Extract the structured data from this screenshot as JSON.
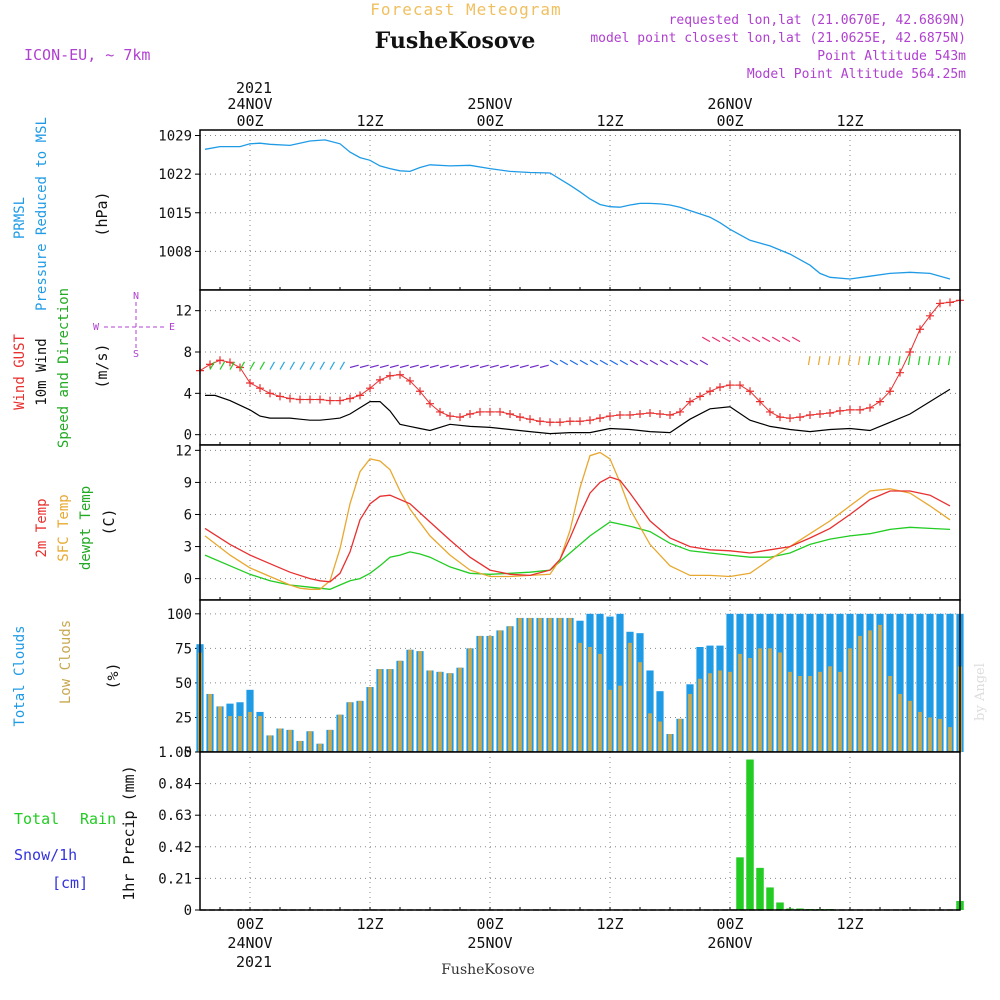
{
  "header": {
    "title": "Forecast Meteogram",
    "location": "FusheKosove",
    "model": "ICON-EU, ~ 7km",
    "requested": "requested lon,lat (21.0670E, 42.6869N)",
    "closest": "model point closest lon,lat (21.0625E, 42.6875N)",
    "point_alt": "Point Altitude 543m",
    "model_alt": "Model Point Altitude 564.25m",
    "footer": "FusheKosove",
    "credit": "by Angel"
  },
  "time_axis": {
    "top_ticks": [
      "00Z",
      "12Z",
      "00Z",
      "12Z",
      "00Z",
      "12Z"
    ],
    "top_dates": [
      "24NOV",
      "",
      "25NOV",
      "",
      "26NOV",
      ""
    ],
    "top_year": "2021",
    "bottom_ticks": [
      "00Z",
      "12Z",
      "00Z",
      "12Z",
      "00Z",
      "12Z"
    ],
    "bottom_dates": [
      "24NOV",
      "",
      "25NOV",
      "",
      "26NOV",
      ""
    ],
    "bottom_year": "2021",
    "hour_range": [
      -5,
      71
    ]
  },
  "colors": {
    "pressure": "#1f9be6",
    "gust": "#e83030",
    "wind": "#000000",
    "t2m": "#e83030",
    "sfc": "#e8a830",
    "dewpt": "#22cc22",
    "total_clouds": "#1f9be6",
    "low_clouds": "#c8a850",
    "rain": "#22cc22",
    "snow": "#3333dd",
    "title_gold": "#f0c060",
    "purple": "#b040d0"
  },
  "chart_data": [
    {
      "type": "line",
      "panel": "pressure",
      "label_main": "PRMSL",
      "label_sub": "Pressure Reduced to MSL",
      "unit": "(hPa)",
      "ylim": [
        1001,
        1030
      ],
      "yticks": [
        1008,
        1015,
        1022,
        1029
      ],
      "x": [
        -4.5,
        -3,
        -1,
        0,
        1,
        2,
        4,
        6,
        7.5,
        9,
        10,
        11,
        12,
        13,
        14,
        15,
        16,
        17,
        18,
        20,
        22,
        24,
        26,
        28,
        30,
        32,
        33,
        34,
        35,
        36,
        37,
        38,
        39,
        40,
        41,
        42,
        43,
        44,
        45,
        46,
        47,
        48,
        50,
        52,
        54,
        56,
        57,
        58,
        60,
        62,
        64,
        66,
        68,
        70
      ],
      "values": [
        1026.5,
        1027,
        1027,
        1027.5,
        1027.6,
        1027.4,
        1027.2,
        1028,
        1028.2,
        1027.5,
        1026,
        1025,
        1024.5,
        1023.5,
        1023,
        1022.6,
        1022.5,
        1023.2,
        1023.7,
        1023.5,
        1023.6,
        1023,
        1022.5,
        1022.3,
        1022.2,
        1020,
        1018.8,
        1017.5,
        1016.5,
        1016.1,
        1016,
        1016.4,
        1016.7,
        1016.7,
        1016.6,
        1016.4,
        1016,
        1015.4,
        1014.8,
        1014.2,
        1013.2,
        1012,
        1010,
        1009,
        1007.5,
        1005.5,
        1004,
        1003.3,
        1003,
        1003.5,
        1004,
        1004.2,
        1004,
        1003
      ]
    },
    {
      "type": "line",
      "panel": "wind",
      "label_gust": "Wind GUST",
      "label_wind": "10m Wind",
      "label_dir": "Speed and Direction",
      "unit": "(m/s)",
      "compass": {
        "n": "N",
        "s": "S",
        "w": "W",
        "e": "E"
      },
      "ylim": [
        -1,
        14
      ],
      "yticks": [
        0,
        4,
        8,
        12
      ],
      "series": [
        {
          "name": "Wind GUST",
          "x": [
            -5,
            -4,
            -3,
            -2,
            -1,
            0,
            1,
            2,
            3,
            4,
            5,
            6,
            7,
            8,
            9,
            10,
            11,
            12,
            13,
            14,
            15,
            16,
            17,
            18,
            19,
            20,
            21,
            22,
            23,
            24,
            25,
            26,
            27,
            28,
            29,
            30,
            31,
            32,
            33,
            34,
            35,
            36,
            37,
            38,
            39,
            40,
            41,
            42,
            43,
            44,
            45,
            46,
            47,
            48,
            49,
            50,
            51,
            52,
            53,
            54,
            55,
            56,
            57,
            58,
            59,
            60,
            61,
            62,
            63,
            64,
            65,
            66,
            67,
            68,
            69,
            70,
            71
          ],
          "values": [
            6.2,
            6.8,
            7.2,
            7,
            6.5,
            5,
            4.5,
            4,
            3.7,
            3.5,
            3.4,
            3.4,
            3.4,
            3.3,
            3.3,
            3.5,
            3.8,
            4.5,
            5.3,
            5.7,
            5.8,
            5.2,
            4.2,
            3,
            2.2,
            1.8,
            1.7,
            2,
            2.2,
            2.2,
            2.2,
            2,
            1.7,
            1.5,
            1.3,
            1.2,
            1.2,
            1.3,
            1.3,
            1.4,
            1.6,
            1.8,
            1.9,
            1.9,
            2,
            2.1,
            2,
            1.9,
            2.2,
            3.2,
            3.7,
            4.2,
            4.6,
            4.8,
            4.8,
            4.2,
            3.2,
            2.2,
            1.7,
            1.6,
            1.7,
            1.9,
            2,
            2.1,
            2.3,
            2.4,
            2.4,
            2.6,
            3.2,
            4.2,
            6,
            8,
            10.2,
            11.5,
            12.7,
            12.8,
            13
          ]
        },
        {
          "name": "10m Wind",
          "x": [
            -4.5,
            -3.5,
            -2,
            0,
            1,
            2,
            3,
            4,
            5,
            6,
            7,
            8,
            9,
            10,
            11,
            12,
            13,
            14,
            15,
            16,
            17,
            18,
            20,
            22,
            24,
            26,
            28,
            30,
            32,
            34,
            36,
            38,
            40,
            42,
            44,
            46,
            48,
            50,
            52,
            54,
            56,
            58,
            60,
            62,
            64,
            66,
            68,
            70
          ],
          "values": [
            3.8,
            3.8,
            3.3,
            2.4,
            1.8,
            1.6,
            1.6,
            1.6,
            1.5,
            1.4,
            1.4,
            1.5,
            1.6,
            2,
            2.6,
            3.2,
            3.2,
            2.3,
            1,
            0.8,
            0.6,
            0.4,
            1,
            0.8,
            0.7,
            0.5,
            0.3,
            0.1,
            0.2,
            0.2,
            0.6,
            0.5,
            0.3,
            0.2,
            1.5,
            2.5,
            2.7,
            1.4,
            0.8,
            0.5,
            0.3,
            0.5,
            0.6,
            0.4,
            1.2,
            2,
            3.2,
            4.4
          ]
        }
      ]
    },
    {
      "type": "line",
      "panel": "temperature",
      "label_t2m": "2m Temp",
      "label_sfc": "SFC Temp",
      "label_dew": "dewpt Temp",
      "unit": "(C)",
      "ylim": [
        -2,
        12.5
      ],
      "yticks": [
        0,
        3,
        6,
        9,
        12
      ],
      "series": [
        {
          "name": "2m Temp",
          "x": [
            -4.5,
            -2,
            0,
            2,
            4,
            6,
            7,
            8,
            9,
            10,
            11,
            12,
            13,
            14,
            16,
            18,
            20,
            22,
            24,
            26,
            28,
            30,
            31,
            32,
            33,
            34,
            35,
            36,
            37,
            38,
            40,
            42,
            44,
            46,
            48,
            50,
            52,
            54,
            56,
            58,
            60,
            62,
            64,
            66,
            68,
            70
          ],
          "values": [
            4.7,
            3.2,
            2.2,
            1.4,
            0.6,
            0,
            -0.2,
            -0.3,
            0.5,
            2.5,
            5.5,
            7,
            7.7,
            7.8,
            7,
            5.3,
            3.6,
            2,
            0.8,
            0.4,
            0.3,
            0.8,
            1.8,
            3.8,
            6,
            8,
            9,
            9.5,
            9.2,
            8,
            5.4,
            3.8,
            3,
            2.7,
            2.6,
            2.4,
            2.7,
            3,
            3.8,
            4.7,
            6,
            7.4,
            8.2,
            8.2,
            7.8,
            6.8
          ]
        },
        {
          "name": "SFC Temp",
          "x": [
            -4.5,
            -2,
            0,
            2,
            4,
            5,
            6,
            7,
            8,
            9,
            10,
            11,
            12,
            13,
            14,
            15,
            16,
            18,
            20,
            22,
            24,
            26,
            28,
            30,
            31,
            32,
            33,
            34,
            35,
            36,
            37,
            38,
            40,
            42,
            44,
            46,
            48,
            50,
            52,
            54,
            56,
            58,
            60,
            62,
            64,
            66,
            68,
            70
          ],
          "values": [
            4,
            2.2,
            1,
            0.2,
            -0.6,
            -0.9,
            -1,
            -1,
            -0.2,
            2.8,
            7,
            10,
            11.2,
            11,
            10.2,
            8.2,
            6.5,
            4,
            2.2,
            0.8,
            0.2,
            0.2,
            0.3,
            0.4,
            1.8,
            4.5,
            8.5,
            11.5,
            11.8,
            11.2,
            9,
            6.5,
            3.2,
            1.2,
            0.3,
            0.3,
            0.2,
            0.5,
            1.8,
            3,
            4.2,
            5.4,
            6.8,
            8.2,
            8.4,
            8,
            6.8,
            5.5
          ]
        },
        {
          "name": "dewpt Temp",
          "x": [
            -4.5,
            -2,
            0,
            2,
            4,
            6,
            8,
            9,
            10,
            11,
            12,
            13,
            14,
            15,
            16,
            17,
            18,
            20,
            22,
            24,
            26,
            28,
            30,
            32,
            34,
            36,
            38,
            40,
            42,
            44,
            46,
            48,
            50,
            52,
            54,
            56,
            58,
            60,
            62,
            64,
            66,
            68,
            70
          ],
          "values": [
            2.2,
            1.2,
            0.4,
            -0.2,
            -0.6,
            -0.8,
            -1,
            -0.6,
            -0.2,
            0,
            0.5,
            1.2,
            2,
            2.2,
            2.5,
            2.3,
            2,
            1.1,
            0.5,
            0.4,
            0.5,
            0.6,
            0.8,
            2.4,
            4,
            5.3,
            4.9,
            4.4,
            3.3,
            2.6,
            2.4,
            2.2,
            2,
            2,
            2.4,
            3.2,
            3.7,
            4,
            4.2,
            4.6,
            4.8,
            4.7,
            4.6
          ]
        }
      ]
    },
    {
      "type": "bar",
      "panel": "clouds",
      "label_total": "Total Clouds",
      "label_low": "Low Clouds",
      "unit": "(%)",
      "ylim": [
        0,
        110
      ],
      "yticks": [
        0,
        25,
        50,
        75,
        100
      ],
      "x_start": -5,
      "x_step": 1,
      "series": [
        {
          "name": "Total Clouds",
          "values": [
            78,
            42,
            33,
            35,
            36,
            45,
            29,
            12,
            17,
            16,
            8,
            15,
            6,
            16,
            27,
            36,
            37,
            47,
            60,
            60,
            66,
            74,
            73,
            59,
            58,
            57,
            61,
            75,
            84,
            84,
            88,
            91,
            97,
            97,
            97,
            97,
            97,
            97,
            95,
            100,
            100,
            98,
            100,
            87,
            86,
            59,
            44,
            13,
            24,
            49,
            76,
            77,
            77,
            100,
            100,
            100,
            100,
            100,
            100,
            100,
            100,
            100,
            100,
            100,
            100,
            100,
            100,
            100,
            100,
            100,
            100,
            100,
            100,
            100,
            100,
            100,
            100
          ]
        },
        {
          "name": "Low Clouds",
          "values": [
            72,
            42,
            33,
            26,
            26,
            29,
            26,
            12,
            17,
            16,
            8,
            15,
            6,
            16,
            27,
            36,
            37,
            47,
            60,
            60,
            66,
            74,
            73,
            59,
            58,
            57,
            61,
            75,
            84,
            84,
            88,
            91,
            97,
            97,
            97,
            97,
            97,
            97,
            79,
            76,
            71,
            45,
            48,
            79,
            65,
            28,
            22,
            13,
            24,
            42,
            53,
            57,
            59,
            58,
            71,
            68,
            75,
            75,
            72,
            58,
            55,
            55,
            58,
            62,
            58,
            75,
            84,
            88,
            92,
            55,
            42,
            37,
            29,
            25,
            24,
            18,
            62
          ]
        }
      ]
    },
    {
      "type": "bar",
      "panel": "precip",
      "label_total": "Total",
      "label_rain": "Rain",
      "label_snow": "Snow/1h",
      "label_cm": "[cm]",
      "unit": "1hr Precip (mm)",
      "ylim": [
        0,
        1.05
      ],
      "yticks": [
        0,
        0.21,
        0.42,
        0.63,
        0.84,
        1.05
      ],
      "ytick_labels": [
        "0",
        "0.21",
        "0.42",
        "0.63",
        "0.84",
        "1.05"
      ],
      "x": [
        49,
        50,
        51,
        52,
        53,
        54,
        55,
        56,
        57,
        58,
        71
      ],
      "values": [
        0.35,
        1.0,
        0.28,
        0.15,
        0.05,
        0.01,
        0.01,
        0.005,
        0.003,
        0.002,
        0.06
      ]
    }
  ]
}
